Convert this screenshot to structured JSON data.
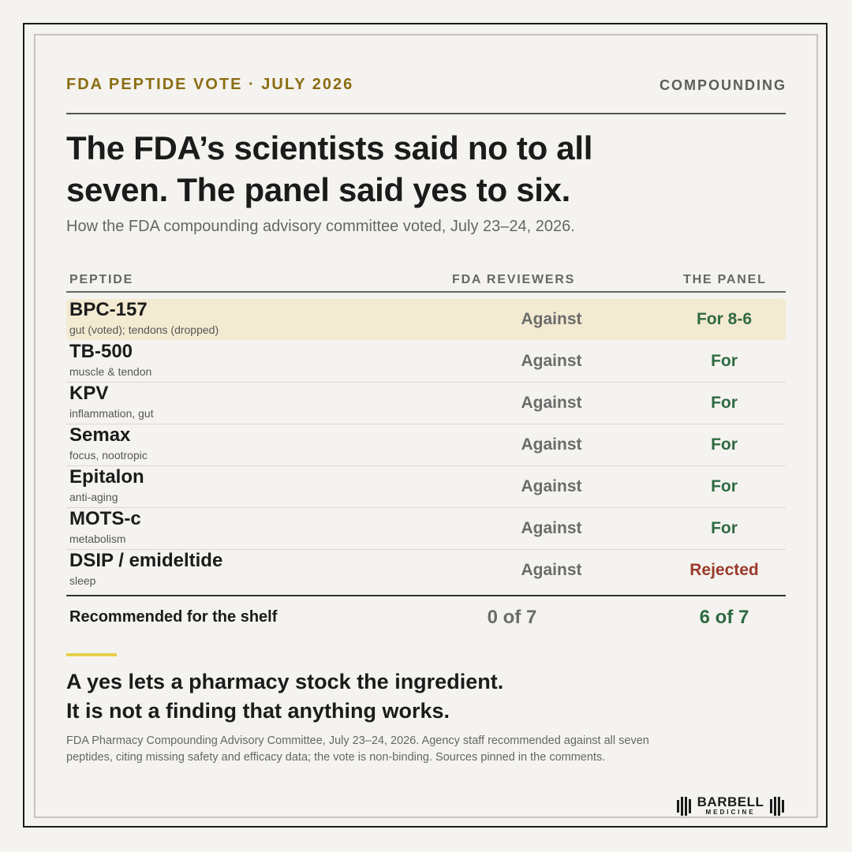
{
  "header": {
    "kicker": "FDA PEPTIDE VOTE · JULY 2026",
    "section": "COMPOUNDING"
  },
  "headline_line1": "The FDA’s scientists said no to all",
  "headline_line2": "seven. The panel said yes to six.",
  "subhead": "How the FDA compounding advisory committee voted, July 23–24, 2026.",
  "table": {
    "columns": [
      "PEPTIDE",
      "FDA REVIEWERS",
      "THE PANEL"
    ],
    "rows": [
      {
        "name": "BPC-157",
        "desc": "gut (voted); tendons (dropped)",
        "fda": "Against",
        "panel": "For 8-6"
      },
      {
        "name": "TB-500",
        "desc": "muscle & tendon",
        "fda": "Against",
        "panel": "For"
      },
      {
        "name": "KPV",
        "desc": "inflammation, gut",
        "fda": "Against",
        "panel": "For"
      },
      {
        "name": "Semax",
        "desc": "focus, nootropic",
        "fda": "Against",
        "panel": "For"
      },
      {
        "name": "Epitalon",
        "desc": "anti-aging",
        "fda": "Against",
        "panel": "For"
      },
      {
        "name": "MOTS-c",
        "desc": "metabolism",
        "fda": "Against",
        "panel": "For"
      },
      {
        "name": "DSIP / emideltide",
        "desc": "sleep",
        "fda": "Against",
        "panel": "Rejected"
      }
    ],
    "total": {
      "label": "Recommended for the shelf",
      "fda": "0 of 7",
      "panel": "6 of 7"
    }
  },
  "takeaway_line1": "A yes lets a pharmacy stock the ingredient.",
  "takeaway_line2": "It is not a finding that anything works.",
  "footnote": "FDA Pharmacy Compounding Advisory Committee, July 23–24, 2026. Agency staff recommended against all seven peptides, citing missing safety and efficacy data; the vote is non-binding. Sources pinned in the comments.",
  "logo": {
    "word": "BARBELL",
    "sub": "MEDICINE"
  },
  "colors": {
    "kicker": "#8a6d12",
    "for": "#2f6a42",
    "rejected": "#9a3a2a",
    "highlight": "#f3ead2",
    "accent": "#e8cf4a"
  }
}
